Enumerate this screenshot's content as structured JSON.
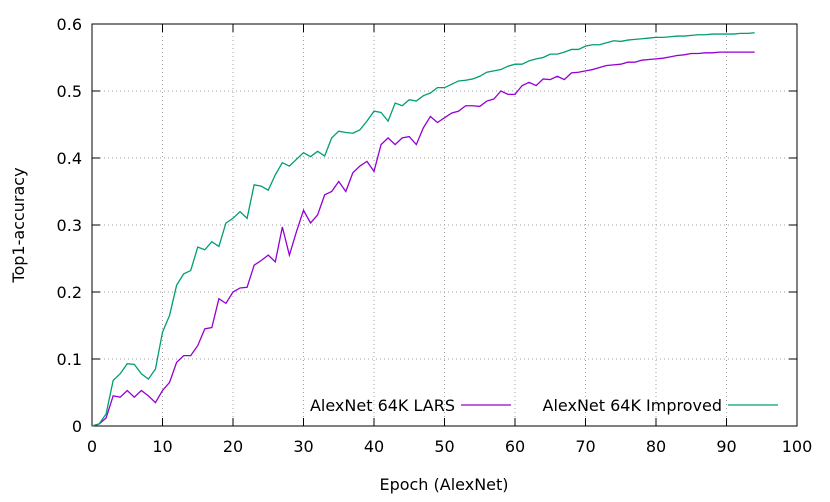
{
  "chart_data": {
    "type": "line",
    "x_label": "Epoch (AlexNet)",
    "y_label": "Top1-accuracy",
    "x": [
      0,
      1,
      2,
      3,
      4,
      5,
      6,
      7,
      8,
      9,
      10,
      11,
      12,
      13,
      14,
      15,
      16,
      17,
      18,
      19,
      20,
      21,
      22,
      23,
      24,
      25,
      26,
      27,
      28,
      29,
      30,
      31,
      32,
      33,
      34,
      35,
      36,
      37,
      38,
      39,
      40,
      41,
      42,
      43,
      44,
      45,
      46,
      47,
      48,
      49,
      50,
      51,
      52,
      53,
      54,
      55,
      56,
      57,
      58,
      59,
      60,
      61,
      62,
      63,
      64,
      65,
      66,
      67,
      68,
      69,
      70,
      71,
      72,
      73,
      74,
      75,
      76,
      77,
      78,
      79,
      80,
      81,
      82,
      83,
      84,
      85,
      86,
      87,
      88,
      89,
      90,
      91,
      92,
      93,
      94
    ],
    "series": [
      {
        "name": "AlexNet 64K LARS",
        "color": "#9400d3",
        "values": [
          0,
          0.003,
          0.012,
          0.045,
          0.043,
          0.053,
          0.043,
          0.053,
          0.045,
          0.035,
          0.053,
          0.065,
          0.095,
          0.105,
          0.105,
          0.12,
          0.145,
          0.147,
          0.19,
          0.183,
          0.2,
          0.206,
          0.207,
          0.24,
          0.247,
          0.255,
          0.245,
          0.297,
          0.255,
          0.29,
          0.322,
          0.303,
          0.315,
          0.345,
          0.35,
          0.365,
          0.35,
          0.378,
          0.388,
          0.395,
          0.38,
          0.42,
          0.43,
          0.42,
          0.43,
          0.432,
          0.42,
          0.445,
          0.462,
          0.453,
          0.46,
          0.467,
          0.47,
          0.478,
          0.478,
          0.477,
          0.485,
          0.488,
          0.5,
          0.495,
          0.495,
          0.508,
          0.513,
          0.508,
          0.518,
          0.517,
          0.522,
          0.517,
          0.527,
          0.528,
          0.53,
          0.532,
          0.535,
          0.538,
          0.539,
          0.54,
          0.543,
          0.543,
          0.546,
          0.547,
          0.548,
          0.549,
          0.551,
          0.553,
          0.554,
          0.556,
          0.556,
          0.557,
          0.557,
          0.558,
          0.558,
          0.558,
          0.558,
          0.558,
          0.558
        ]
      },
      {
        "name": "AlexNet 64K Improved",
        "color": "#009e73",
        "values": [
          0,
          0.003,
          0.018,
          0.068,
          0.078,
          0.093,
          0.092,
          0.078,
          0.07,
          0.085,
          0.14,
          0.165,
          0.21,
          0.227,
          0.232,
          0.267,
          0.263,
          0.275,
          0.268,
          0.303,
          0.31,
          0.32,
          0.31,
          0.36,
          0.358,
          0.352,
          0.375,
          0.393,
          0.388,
          0.398,
          0.408,
          0.402,
          0.41,
          0.403,
          0.43,
          0.44,
          0.438,
          0.437,
          0.442,
          0.455,
          0.47,
          0.468,
          0.455,
          0.482,
          0.478,
          0.487,
          0.485,
          0.493,
          0.497,
          0.505,
          0.505,
          0.51,
          0.515,
          0.516,
          0.518,
          0.522,
          0.528,
          0.53,
          0.532,
          0.537,
          0.54,
          0.54,
          0.545,
          0.548,
          0.55,
          0.555,
          0.555,
          0.558,
          0.562,
          0.562,
          0.567,
          0.569,
          0.569,
          0.572,
          0.575,
          0.574,
          0.576,
          0.577,
          0.578,
          0.579,
          0.58,
          0.58,
          0.581,
          0.582,
          0.582,
          0.583,
          0.584,
          0.584,
          0.585,
          0.585,
          0.585,
          0.585,
          0.586,
          0.586,
          0.587
        ]
      }
    ],
    "xlim": [
      0,
      100
    ],
    "xticks": [
      0,
      10,
      20,
      30,
      40,
      50,
      60,
      70,
      80,
      90,
      100
    ],
    "ylim": [
      0,
      0.6
    ],
    "yticks": [
      0,
      0.1,
      0.2,
      0.3,
      0.4,
      0.5,
      0.6
    ],
    "grid": true,
    "legend": "bottom-right"
  }
}
